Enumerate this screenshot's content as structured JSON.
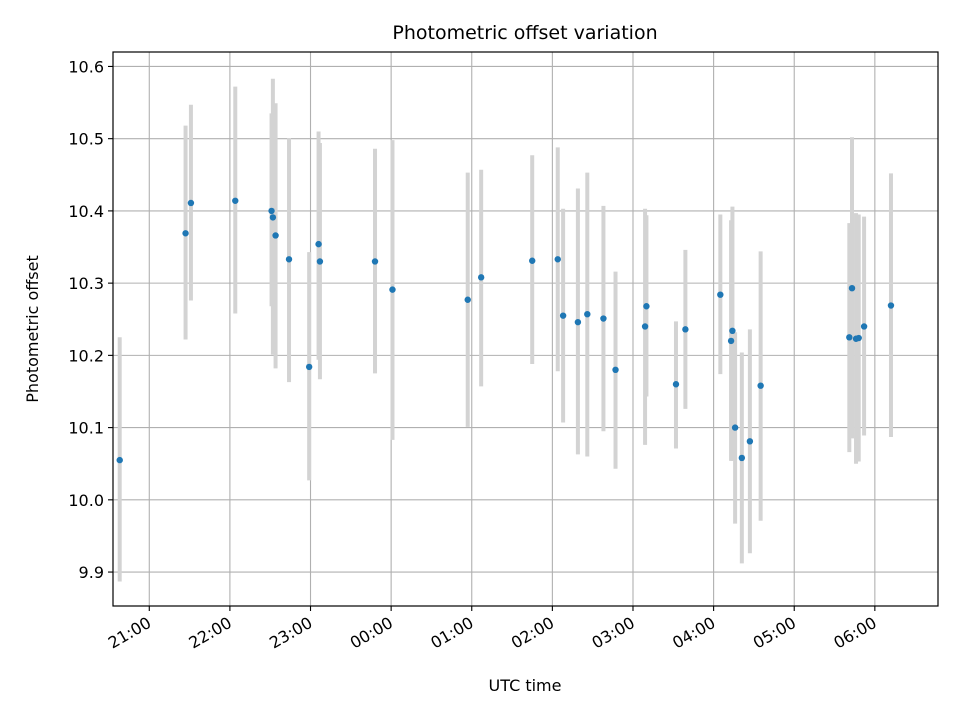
{
  "chart_data": {
    "type": "scatter",
    "title": "Photometric offset variation",
    "xlabel": "UTC time",
    "ylabel": "Photometric offset",
    "x_is_time": true,
    "x_tick_labels": [
      "21:00",
      "22:00",
      "23:00",
      "00:00",
      "01:00",
      "02:00",
      "03:00",
      "04:00",
      "05:00",
      "06:00"
    ],
    "x_ticks": [
      "21:00",
      "22:00",
      "23:00",
      "00:00",
      "01:00",
      "02:00",
      "03:00",
      "04:00",
      "05:00",
      "06:00"
    ],
    "xlim": [
      "20:33",
      "06:47"
    ],
    "y_tick_labels": [
      "9.9",
      "10.0",
      "10.1",
      "10.2",
      "10.3",
      "10.4",
      "10.5",
      "10.6"
    ],
    "y_ticks": [
      9.9,
      10.0,
      10.1,
      10.2,
      10.3,
      10.4,
      10.5,
      10.6
    ],
    "ylim": [
      9.853,
      10.62
    ],
    "grid": true,
    "marker_color": "#1f77b4",
    "errorbar_color": "#d3d3d3",
    "points": [
      {
        "x": "20:38",
        "y": 10.055,
        "yerr_low": 9.887,
        "yerr_high": 10.225
      },
      {
        "x": "21:27",
        "y": 10.369,
        "yerr_low": 10.222,
        "yerr_high": 10.518
      },
      {
        "x": "21:31",
        "y": 10.411,
        "yerr_low": 10.276,
        "yerr_high": 10.547
      },
      {
        "x": "22:04",
        "y": 10.414,
        "yerr_low": 10.258,
        "yerr_high": 10.572
      },
      {
        "x": "22:31",
        "y": 10.4,
        "yerr_low": 10.268,
        "yerr_high": 10.535
      },
      {
        "x": "22:32",
        "y": 10.391,
        "yerr_low": 10.201,
        "yerr_high": 10.583
      },
      {
        "x": "22:34",
        "y": 10.366,
        "yerr_low": 10.182,
        "yerr_high": 10.549
      },
      {
        "x": "22:44",
        "y": 10.333,
        "yerr_low": 10.163,
        "yerr_high": 10.501
      },
      {
        "x": "22:59",
        "y": 10.184,
        "yerr_low": 10.027,
        "yerr_high": 10.343
      },
      {
        "x": "23:06",
        "y": 10.354,
        "yerr_low": 10.194,
        "yerr_high": 10.51
      },
      {
        "x": "23:07",
        "y": 10.33,
        "yerr_low": 10.167,
        "yerr_high": 10.494
      },
      {
        "x": "23:48",
        "y": 10.33,
        "yerr_low": 10.175,
        "yerr_high": 10.486
      },
      {
        "x": "00:01",
        "y": 10.291,
        "yerr_low": 10.083,
        "yerr_high": 10.498
      },
      {
        "x": "00:57",
        "y": 10.277,
        "yerr_low": 10.101,
        "yerr_high": 10.453
      },
      {
        "x": "01:07",
        "y": 10.308,
        "yerr_low": 10.157,
        "yerr_high": 10.457
      },
      {
        "x": "01:45",
        "y": 10.331,
        "yerr_low": 10.188,
        "yerr_high": 10.477
      },
      {
        "x": "02:04",
        "y": 10.333,
        "yerr_low": 10.178,
        "yerr_high": 10.488
      },
      {
        "x": "02:08",
        "y": 10.255,
        "yerr_low": 10.107,
        "yerr_high": 10.403
      },
      {
        "x": "02:19",
        "y": 10.246,
        "yerr_low": 10.063,
        "yerr_high": 10.431
      },
      {
        "x": "02:26",
        "y": 10.257,
        "yerr_low": 10.06,
        "yerr_high": 10.453
      },
      {
        "x": "02:38",
        "y": 10.251,
        "yerr_low": 10.095,
        "yerr_high": 10.407
      },
      {
        "x": "02:47",
        "y": 10.18,
        "yerr_low": 10.043,
        "yerr_high": 10.316
      },
      {
        "x": "03:09",
        "y": 10.24,
        "yerr_low": 10.076,
        "yerr_high": 10.403
      },
      {
        "x": "03:10",
        "y": 10.268,
        "yerr_low": 10.143,
        "yerr_high": 10.394
      },
      {
        "x": "03:32",
        "y": 10.16,
        "yerr_low": 10.071,
        "yerr_high": 10.247
      },
      {
        "x": "03:39",
        "y": 10.236,
        "yerr_low": 10.126,
        "yerr_high": 10.346
      },
      {
        "x": "04:05",
        "y": 10.284,
        "yerr_low": 10.174,
        "yerr_high": 10.395
      },
      {
        "x": "04:13",
        "y": 10.22,
        "yerr_low": 10.054,
        "yerr_high": 10.387
      },
      {
        "x": "04:14",
        "y": 10.234,
        "yerr_low": 10.054,
        "yerr_high": 10.406
      },
      {
        "x": "04:16",
        "y": 10.1,
        "yerr_low": 9.967,
        "yerr_high": 10.232
      },
      {
        "x": "04:21",
        "y": 10.058,
        "yerr_low": 9.912,
        "yerr_high": 10.204
      },
      {
        "x": "04:27",
        "y": 10.081,
        "yerr_low": 9.926,
        "yerr_high": 10.236
      },
      {
        "x": "04:35",
        "y": 10.158,
        "yerr_low": 9.971,
        "yerr_high": 10.344
      },
      {
        "x": "05:41",
        "y": 10.225,
        "yerr_low": 10.066,
        "yerr_high": 10.383
      },
      {
        "x": "05:43",
        "y": 10.293,
        "yerr_low": 10.085,
        "yerr_high": 10.502
      },
      {
        "x": "05:46",
        "y": 10.223,
        "yerr_low": 10.05,
        "yerr_high": 10.397
      },
      {
        "x": "05:48",
        "y": 10.224,
        "yerr_low": 10.053,
        "yerr_high": 10.395
      },
      {
        "x": "05:52",
        "y": 10.24,
        "yerr_low": 10.089,
        "yerr_high": 10.392
      },
      {
        "x": "06:12",
        "y": 10.269,
        "yerr_low": 10.087,
        "yerr_high": 10.452
      }
    ]
  }
}
